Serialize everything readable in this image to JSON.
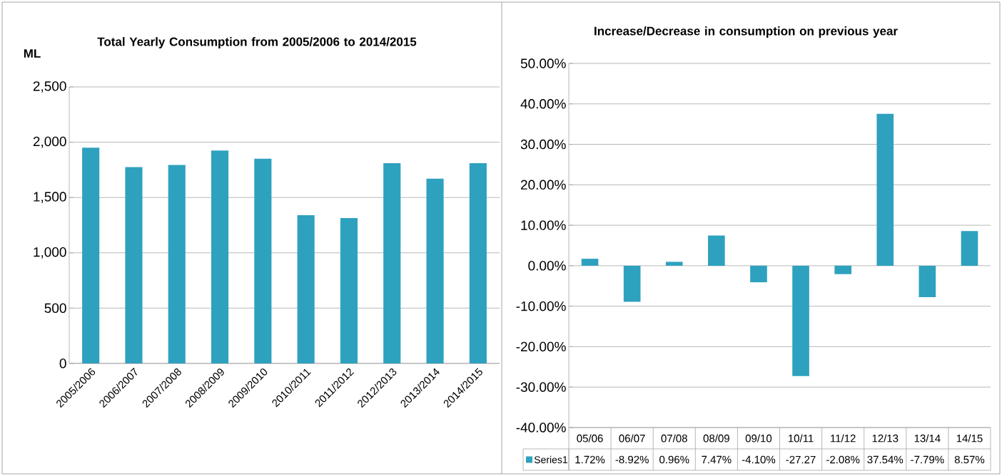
{
  "chart_data": [
    {
      "type": "bar",
      "title": "Total Yearly Consumption from 2005/2006 to 2014/2015",
      "ylabel": "ML",
      "categories": [
        "2005/2006",
        "2006/2007",
        "2007/2008",
        "2008/2009",
        "2009/2010",
        "2010/2011",
        "2011/2012",
        "2012/2013",
        "2013/2014",
        "2014/2015"
      ],
      "values": [
        1950,
        1775,
        1795,
        1925,
        1850,
        1340,
        1315,
        1810,
        1670,
        1810
      ],
      "color": "#2ea1bf",
      "ylim": [
        0,
        2500
      ],
      "yticks": [
        0,
        500,
        {
          "value": 1000,
          "label": "1,000"
        },
        {
          "value": 1500,
          "label": "1,500"
        },
        {
          "value": 2000,
          "label": "2,000"
        },
        {
          "value": 2500,
          "label": "2,500"
        }
      ],
      "grid": "y"
    },
    {
      "type": "bar",
      "title": "Increase/Decrease in consumption on previous year",
      "categories": [
        "05/06",
        "06/07",
        "07/08",
        "08/09",
        "09/10",
        "10/11",
        "11/12",
        "12/13",
        "13/14",
        "14/15"
      ],
      "series": [
        {
          "name": "Series1",
          "color": "#2ea1bf",
          "values": [
            1.72,
            -8.92,
            0.96,
            7.47,
            -4.1,
            -27.27,
            -2.08,
            37.54,
            -7.79,
            8.57
          ],
          "value_labels": [
            "1.72%",
            "-8.92%",
            "0.96%",
            "7.47%",
            "-4.10%",
            "-27.27",
            "-2.08%",
            "37.54%",
            "-7.79%",
            "8.57%"
          ]
        }
      ],
      "ylim": [
        -40,
        50
      ],
      "yticks": [
        {
          "value": -40,
          "label": "-40.00%"
        },
        {
          "value": -30,
          "label": "-30.00%"
        },
        {
          "value": -20,
          "label": "-20.00%"
        },
        {
          "value": -10,
          "label": "-10.00%"
        },
        {
          "value": 0,
          "label": "0.00%"
        },
        {
          "value": 10,
          "label": "10.00%"
        },
        {
          "value": 20,
          "label": "20.00%"
        },
        {
          "value": 30,
          "label": "30.00%"
        },
        {
          "value": 40,
          "label": "40.00%"
        },
        {
          "value": 50,
          "label": "50.00%"
        }
      ],
      "grid": "y",
      "legend": "bottom"
    }
  ]
}
